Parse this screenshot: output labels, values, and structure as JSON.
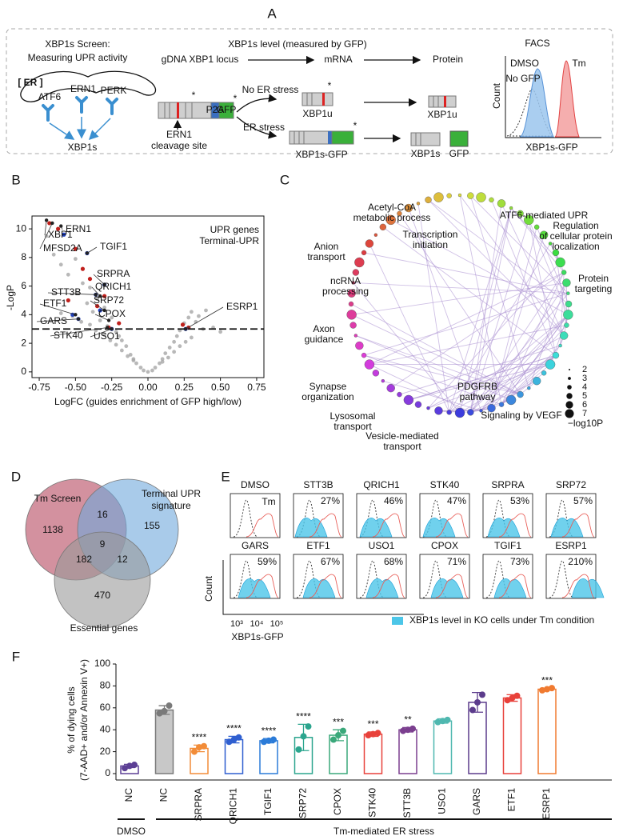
{
  "panel_labels": [
    "A",
    "B",
    "C",
    "D",
    "E",
    "F"
  ],
  "panel_a": {
    "screen_title": [
      "XBP1s Screen:",
      "Measuring UPR activity"
    ],
    "er": "[ ER ]",
    "sensors": [
      "ATF6",
      "ERN1",
      "PERK"
    ],
    "output": "XBP1s",
    "header": "XBP1s level (measured by GFP)",
    "steps": [
      "gDNA XBP1 locus",
      "mRNA",
      "Protein"
    ],
    "no_stress": "No ER stress",
    "stress": "ER stress",
    "mrna_u": "XBP1u",
    "protein_u": "XBP1u",
    "mrna_s": "XBP1s-GFP",
    "protein_s": "XBP1s",
    "protein_gfp": "GFP",
    "cleavage": [
      "ERN1",
      "cleavage site"
    ],
    "p2a": "P2A",
    "gfp_tag": "GFP",
    "facs": {
      "title": "FACS",
      "dmso": "DMSO",
      "tm": "Tm",
      "no_gfp": "No GFP",
      "ylabel": "Count",
      "xlabel": "XBP1s-GFP"
    }
  },
  "chart_data": [
    {
      "type": "scatter",
      "ylabel": "-LogP",
      "xlabel": "LogFC (guides enrichment of GFP high/low)",
      "xlim": [
        -0.8,
        0.8
      ],
      "ylim": [
        -0.4,
        10.9
      ],
      "xticks": [
        {
          "value": -0.75,
          "label": "-0.75"
        },
        {
          "value": -0.5,
          "label": "-0.50"
        },
        {
          "value": -0.25,
          "label": "-0.25"
        },
        {
          "value": 0,
          "label": "0.00"
        },
        {
          "value": 0.25,
          "label": "0.25"
        },
        {
          "value": 0.5,
          "label": "0.50"
        },
        {
          "value": 0.75,
          "label": "0.75"
        }
      ],
      "yticks": [
        0,
        2,
        4,
        6,
        8,
        10
      ],
      "threshold": 3,
      "legend": "top-right",
      "series": [
        {
          "color": "#a6a6a6",
          "x": [
            -0.7,
            -0.65,
            -0.6,
            -0.55,
            -0.5,
            -0.48,
            -0.45,
            -0.42,
            -0.4,
            -0.38,
            -0.35,
            -0.33,
            -0.3,
            -0.28,
            -0.25,
            -0.22,
            -0.2,
            -0.18,
            -0.15,
            -0.12,
            -0.1,
            -0.08,
            -0.05,
            -0.03,
            0,
            0.03,
            0.05,
            0.08,
            0.1,
            0.12,
            0.15,
            0.18,
            0.2,
            0.22,
            0.25,
            0.28,
            0.3,
            0.33,
            0.35,
            0.4,
            0.45,
            0.5,
            -0.6,
            -0.52,
            -0.46,
            -0.4,
            -0.36,
            -0.3,
            -0.26,
            -0.22,
            -0.18,
            -0.14,
            -0.1,
            0.1,
            0.14,
            0.18,
            0.22,
            0.26,
            0.3,
            0.38
          ],
          "values": [
            9.5,
            8.2,
            7.5,
            6.8,
            7.9,
            5.5,
            6.2,
            4.8,
            5.9,
            4.2,
            5.1,
            3.6,
            4.5,
            3.2,
            3.8,
            2.8,
            2.5,
            2.2,
            1.8,
            1.2,
            0.9,
            0.6,
            0.3,
            0.1,
            0,
            0.1,
            0.3,
            0.6,
            0.9,
            1.3,
            1.7,
            2.1,
            2.5,
            2.9,
            3.4,
            3.8,
            4.2,
            3.5,
            3.9,
            4.3,
            3.1,
            2.8,
            4.1,
            3.9,
            3.5,
            3.3,
            2.9,
            2.6,
            2.2,
            1.9,
            1.5,
            1.1,
            0.8,
            0.7,
            1.0,
            1.4,
            1.8,
            2.1,
            2.4,
            3.0
          ]
        },
        {
          "name": "UPR genes",
          "color": "#c0201c",
          "x": [
            -0.68,
            -0.62,
            -0.5,
            -0.45,
            -0.4,
            -0.35,
            -0.3,
            -0.27,
            -0.2,
            0.24,
            0.28,
            -0.55
          ],
          "values": [
            10.4,
            10.0,
            8.6,
            7.2,
            6.5,
            4.6,
            5.3,
            3.1,
            3.4,
            3.3,
            3.1,
            5.0
          ]
        },
        {
          "name": "Terminal-UPR",
          "color": "#2040c0",
          "x": [
            -0.58,
            -0.52,
            -0.42,
            -0.33,
            -0.3,
            -0.25,
            -0.36,
            0.26,
            -0.48
          ],
          "values": [
            9.6,
            4.0,
            8.3,
            4.3,
            6.1,
            3.0,
            5.4,
            3.0,
            3.7
          ]
        }
      ],
      "annotations": [
        {
          "text": "ERN1",
          "x": -0.6,
          "y": 10.2
        },
        {
          "text": "XBP1",
          "x": -0.7,
          "y": 10.6
        },
        {
          "text": "TGIF1",
          "x": -0.42,
          "y": 8.3
        },
        {
          "text": "MFSD2A",
          "x": -0.66,
          "y": 10.4
        },
        {
          "text": "SRPRA",
          "x": -0.3,
          "y": 6.1
        },
        {
          "text": "QRICH1",
          "x": -0.33,
          "y": 5.3
        },
        {
          "text": "STT3B",
          "x": -0.36,
          "y": 5.4
        },
        {
          "text": "SRP72",
          "x": -0.3,
          "y": 4.3
        },
        {
          "text": "ETF1",
          "x": -0.5,
          "y": 4.0
        },
        {
          "text": "CPOX",
          "x": -0.27,
          "y": 3.6
        },
        {
          "text": "GARS",
          "x": -0.48,
          "y": 3.7
        },
        {
          "text": "STK40",
          "x": -0.28,
          "y": 3.1
        },
        {
          "text": "USO1",
          "x": -0.25,
          "y": 3.0
        },
        {
          "text": "ESRP1",
          "x": 0.26,
          "y": 3.0
        }
      ]
    },
    {
      "type": "bar",
      "ylabel": [
        "% of dying cells",
        "(7-AAD+ and/or Annexin V+)"
      ],
      "categories": [
        "NC",
        "NC",
        "SRPRA",
        "QRICH1",
        "TGIF1",
        "SRP72",
        "CPOX",
        "STK40",
        "STT3B",
        "USO1",
        "GARS",
        "ETF1",
        "ESRP1"
      ],
      "values": [
        7,
        58,
        23,
        31,
        30,
        33,
        35,
        36,
        40,
        48,
        65,
        69,
        77
      ],
      "errors": [
        1.5,
        4,
        3,
        3,
        2,
        12,
        5,
        2,
        2,
        2,
        9,
        3,
        1
      ],
      "replicates": [
        [
          5,
          7,
          8
        ],
        [
          55,
          57,
          62
        ],
        [
          20,
          24,
          25
        ],
        [
          29,
          31,
          33
        ],
        [
          29,
          30,
          31
        ],
        [
          22,
          34,
          43
        ],
        [
          31,
          35,
          39
        ],
        [
          35,
          36,
          37
        ],
        [
          39,
          40,
          41
        ],
        [
          47,
          48,
          49
        ],
        [
          58,
          65,
          72
        ],
        [
          67,
          69,
          71
        ],
        [
          76,
          77,
          78
        ]
      ],
      "colors": [
        "#5c3f95",
        "#7a7a7a",
        "#f28c38",
        "#2f5fd0",
        "#2b7bd8",
        "#2ba58e",
        "#3aa87a",
        "#e8413a",
        "#7b3f8f",
        "#4fb8b0",
        "#5c3c8c",
        "#e8413a",
        "#f07a30"
      ],
      "filled": [
        false,
        true,
        false,
        false,
        false,
        false,
        false,
        false,
        false,
        false,
        false,
        false,
        false
      ],
      "significance": [
        null,
        null,
        "****",
        "****",
        "****",
        "****",
        "***",
        "***",
        "**",
        null,
        null,
        null,
        "***"
      ],
      "groups": [
        "DMSO",
        "Tm-mediated ER stress"
      ],
      "ylim": [
        0,
        100
      ],
      "yticks": [
        0,
        20,
        40,
        60,
        80,
        100
      ]
    }
  ],
  "panel_c": {
    "clusters": [
      {
        "lines": [
          "Acetyl-CoA",
          "metabolic process"
        ],
        "color": "#d4ad00"
      },
      {
        "lines": [
          "ATF6-mediated UPR"
        ],
        "color": "#a020f0"
      },
      {
        "lines": [
          "Regulation",
          "of cellular protein",
          "localization"
        ],
        "color": "#1a7a1a"
      },
      {
        "lines": [
          "Transcription",
          "initiation"
        ],
        "color": "#7a4a10"
      },
      {
        "lines": [
          "Anion",
          "transport"
        ],
        "color": "#666666"
      },
      {
        "lines": [
          "Protein",
          "targeting"
        ],
        "color": "#d21010"
      },
      {
        "lines": [
          "ncRNA",
          "processing"
        ],
        "color": "#22a6d8"
      },
      {
        "lines": [
          "Axon",
          "guidance"
        ],
        "color": "#d4ad00"
      },
      {
        "lines": [
          "Synapse",
          "organization"
        ],
        "color": "#f08070"
      },
      {
        "lines": [
          "PDGFRB",
          "pathway"
        ],
        "color": "#7ac020"
      },
      {
        "lines": [
          "Lysosomal",
          "transport"
        ],
        "color": "#1e90d8"
      },
      {
        "lines": [
          "Vesicle-mediated",
          "transport"
        ],
        "color": "#f07020"
      },
      {
        "lines": [
          "Signaling by VEGF"
        ],
        "color": "#e060e0"
      }
    ],
    "size_legend": [
      2,
      3,
      4,
      5,
      6,
      7
    ],
    "size_legend_title": "−log10P"
  },
  "panel_d": {
    "sets": [
      {
        "label": [
          "Tm Screen"
        ],
        "color": "#b5485f"
      },
      {
        "label": [
          "Terminal UPR",
          "signature"
        ],
        "color": "#6fa8dc"
      },
      {
        "label": [
          "Essential genes"
        ],
        "color": "#9a9a9a"
      }
    ],
    "counts": {
      "tm_only": "1138",
      "tm_terminal": "16",
      "terminal_only": "155",
      "tm_essential": "182",
      "all": "9",
      "terminal_essential": "12",
      "essential_only": "470"
    }
  },
  "panel_e": {
    "labels": [
      "DMSO",
      "STT3B",
      "QRICH1",
      "STK40",
      "SRPRA",
      "SRP72",
      "GARS",
      "ETF1",
      "USO1",
      "CPOX",
      "TGIF1",
      "ESRP1"
    ],
    "percents": [
      null,
      "27%",
      "46%",
      "47%",
      "53%",
      "57%",
      "59%",
      "67%",
      "68%",
      "71%",
      "73%",
      "210%"
    ],
    "tm": "Tm",
    "ylabel": "Count",
    "xlabel": "XBP1s-GFP",
    "xticks": [
      "10³",
      "10⁴",
      "10⁵"
    ],
    "legend": "XBP1s level in KO cells under Tm condition"
  }
}
